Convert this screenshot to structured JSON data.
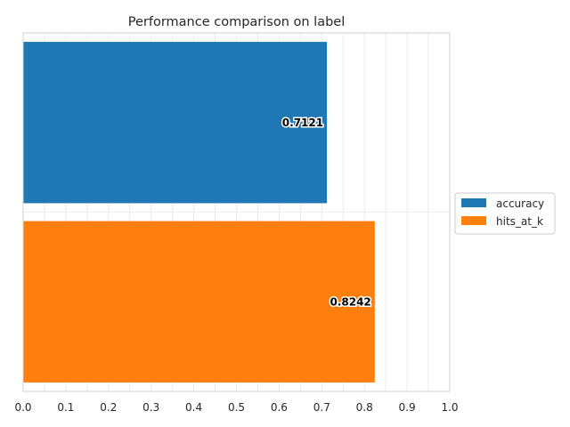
{
  "chart_data": {
    "type": "bar",
    "orientation": "horizontal",
    "title": "Performance comparison on label",
    "xlabel": "",
    "ylabel": "",
    "xlim": [
      0,
      1.0
    ],
    "xticks": [
      "0.0",
      "0.1",
      "0.2",
      "0.3",
      "0.4",
      "0.5",
      "0.6",
      "0.7",
      "0.8",
      "0.9",
      "1.0"
    ],
    "grid": true,
    "legend_position": "center-right outside",
    "series": [
      {
        "name": "accuracy",
        "values": [
          0.7121
        ],
        "label": "0.7121",
        "color": "#1f77b4"
      },
      {
        "name": "hits_at_k",
        "values": [
          0.8242
        ],
        "label": "0.8242",
        "color": "#ff7f0e"
      }
    ]
  }
}
